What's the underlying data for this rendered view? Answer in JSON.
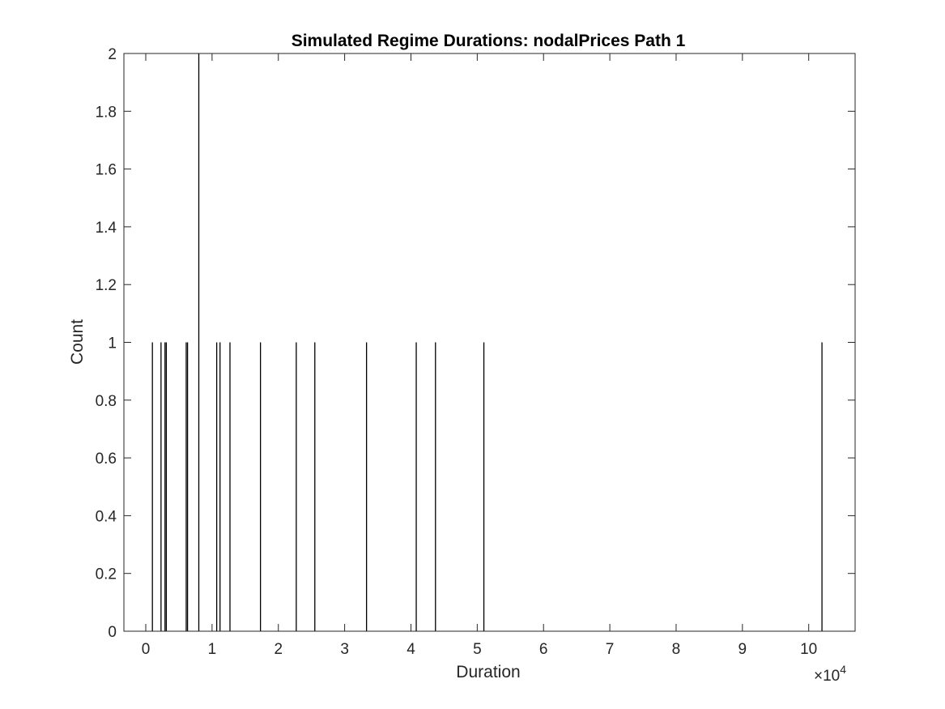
{
  "chart_data": {
    "type": "bar",
    "title": "Simulated Regime Durations: nodalPrices Path 1",
    "xlabel": "Duration",
    "ylabel": "Count",
    "x_exponent_label": "×10",
    "x_exponent_power": "4",
    "xlim": [
      -0.33,
      10.7
    ],
    "ylim": [
      0,
      2
    ],
    "xticks": [
      0,
      1,
      2,
      3,
      4,
      5,
      6,
      7,
      8,
      9,
      10
    ],
    "xtick_labels": [
      "0",
      "1",
      "2",
      "3",
      "4",
      "5",
      "6",
      "7",
      "8",
      "9",
      "10"
    ],
    "yticks": [
      0,
      0.2,
      0.4,
      0.6,
      0.8,
      1,
      1.2,
      1.4,
      1.6,
      1.8,
      2
    ],
    "ytick_labels": [
      "0",
      "0.2",
      "0.4",
      "0.6",
      "0.8",
      "1",
      "1.2",
      "1.4",
      "1.6",
      "1.8",
      "2"
    ],
    "grid": false,
    "bar_color": "#000000",
    "bars": [
      {
        "x": 0.1,
        "count": 1
      },
      {
        "x": 0.23,
        "count": 1
      },
      {
        "x": 0.29,
        "count": 1
      },
      {
        "x": 0.31,
        "count": 1
      },
      {
        "x": 0.61,
        "count": 1
      },
      {
        "x": 0.63,
        "count": 1
      },
      {
        "x": 0.8,
        "count": 2
      },
      {
        "x": 1.07,
        "count": 1
      },
      {
        "x": 1.12,
        "count": 1
      },
      {
        "x": 1.27,
        "count": 1
      },
      {
        "x": 1.73,
        "count": 1
      },
      {
        "x": 2.27,
        "count": 1
      },
      {
        "x": 2.55,
        "count": 1
      },
      {
        "x": 3.33,
        "count": 1
      },
      {
        "x": 4.08,
        "count": 1
      },
      {
        "x": 4.37,
        "count": 1
      },
      {
        "x": 5.1,
        "count": 1
      },
      {
        "x": 10.2,
        "count": 1
      }
    ]
  }
}
